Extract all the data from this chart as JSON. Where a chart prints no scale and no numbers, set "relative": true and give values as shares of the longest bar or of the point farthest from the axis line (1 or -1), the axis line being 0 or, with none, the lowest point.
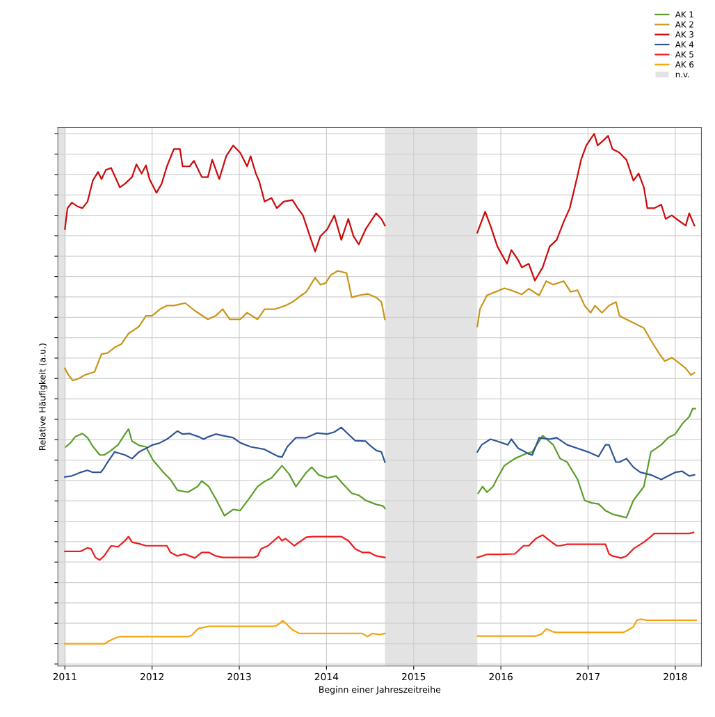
{
  "chart_data": {
    "type": "line",
    "relative": true,
    "xlabel": "Beginn einer Jahreszeitreihe",
    "ylabel": "Relative Häufigkeit (a.u.)",
    "xlim": [
      2010.92,
      2018.3
    ],
    "xticks": [
      2011,
      2012,
      2013,
      2014,
      2015,
      2016,
      2017,
      2018
    ],
    "grid": true,
    "legend": "top right",
    "tick_labels": "x",
    "line_style": "solid",
    "marker": "none",
    "bands": [
      {
        "axis": "x",
        "from": 2010.93,
        "to": 2011.01,
        "color": "#e3e3e3"
      },
      {
        "axis": "x",
        "from": 2014.67,
        "to": 2015.73,
        "label": "n.v.",
        "color": "#e3e3e3"
      }
    ],
    "series": [
      {
        "name": "AK 1",
        "color": "#5b9e2a",
        "x": [
          2011.01,
          2011.06,
          2011.12,
          2011.2,
          2011.26,
          2011.32,
          2011.4,
          2011.45,
          2011.53,
          2011.61,
          2011.69,
          2011.73,
          2011.77,
          2011.85,
          2011.93,
          2012.01,
          2012.13,
          2012.21,
          2012.29,
          2012.41,
          2012.52,
          2012.57,
          2012.65,
          2012.73,
          2012.83,
          2012.93,
          2013.01,
          2013.11,
          2013.21,
          2013.29,
          2013.37,
          2013.49,
          2013.57,
          2013.65,
          2013.77,
          2013.83,
          2013.91,
          2014.01,
          2014.11,
          2014.18,
          2014.29,
          2014.37,
          2014.45,
          2014.57,
          2014.65,
          2014.67,
          2015.2,
          2015.74,
          2015.79,
          2015.84,
          2015.91,
          2015.96,
          2016.04,
          2016.16,
          2016.28,
          2016.36,
          2016.48,
          2016.6,
          2016.68,
          2016.76,
          2016.88,
          2016.96,
          2017.04,
          2017.12,
          2017.2,
          2017.28,
          2017.44,
          2017.52,
          2017.64,
          2017.72,
          2017.84,
          2017.92,
          2018.0,
          2018.08,
          2018.16,
          2018.2,
          2018.23
        ],
        "values": [
          0.386,
          0.393,
          0.406,
          0.412,
          0.404,
          0.387,
          0.37,
          0.37,
          0.379,
          0.39,
          0.411,
          0.421,
          0.397,
          0.389,
          0.386,
          0.36,
          0.336,
          0.322,
          0.301,
          0.297,
          0.308,
          0.319,
          0.308,
          0.284,
          0.251,
          0.263,
          0.261,
          0.284,
          0.308,
          0.318,
          0.325,
          0.349,
          0.333,
          0.308,
          0.336,
          0.346,
          0.331,
          0.325,
          0.329,
          0.315,
          0.295,
          0.291,
          0.281,
          0.273,
          0.27,
          0.265,
          null,
          0.295,
          0.308,
          0.297,
          0.308,
          0.325,
          0.349,
          0.363,
          0.372,
          0.376,
          0.408,
          0.39,
          0.363,
          0.356,
          0.322,
          0.281,
          0.276,
          0.274,
          0.261,
          0.254,
          0.247,
          0.281,
          0.308,
          0.376,
          0.39,
          0.404,
          0.411,
          0.431,
          0.445,
          0.461,
          0.461
        ]
      },
      {
        "name": "AK 2",
        "color": "#c9961a",
        "x": [
          2011.0,
          2011.04,
          2011.09,
          2011.16,
          2011.23,
          2011.34,
          2011.42,
          2011.49,
          2011.57,
          2011.65,
          2011.73,
          2011.85,
          2011.93,
          2012.0,
          2012.09,
          2012.17,
          2012.25,
          2012.38,
          2012.49,
          2012.64,
          2012.73,
          2012.81,
          2012.89,
          2013.01,
          2013.09,
          2013.21,
          2013.29,
          2013.41,
          2013.53,
          2013.61,
          2013.71,
          2013.77,
          2013.87,
          2013.93,
          2013.99,
          2014.05,
          2014.13,
          2014.23,
          2014.29,
          2014.37,
          2014.47,
          2014.57,
          2014.63,
          2014.67,
          2015.2,
          2015.73,
          2015.76,
          2015.84,
          2015.94,
          2016.04,
          2016.12,
          2016.24,
          2016.32,
          2016.44,
          2016.52,
          2016.6,
          2016.72,
          2016.8,
          2016.88,
          2016.96,
          2017.03,
          2017.08,
          2017.16,
          2017.24,
          2017.32,
          2017.36,
          2017.44,
          2017.52,
          2017.64,
          2017.72,
          2017.82,
          2017.88,
          2017.96,
          2018.04,
          2018.12,
          2018.18,
          2018.22
        ],
        "values": [
          0.54,
          0.527,
          0.516,
          0.52,
          0.527,
          0.533,
          0.568,
          0.57,
          0.581,
          0.588,
          0.608,
          0.622,
          0.643,
          0.643,
          0.656,
          0.663,
          0.663,
          0.668,
          0.653,
          0.636,
          0.643,
          0.656,
          0.636,
          0.636,
          0.649,
          0.636,
          0.656,
          0.656,
          0.663,
          0.67,
          0.683,
          0.69,
          0.718,
          0.704,
          0.707,
          0.723,
          0.731,
          0.727,
          0.679,
          0.683,
          0.686,
          0.679,
          0.67,
          0.636,
          null,
          0.622,
          0.656,
          0.683,
          0.69,
          0.697,
          0.693,
          0.685,
          0.696,
          0.683,
          0.711,
          0.704,
          0.711,
          0.69,
          0.693,
          0.663,
          0.649,
          0.663,
          0.649,
          0.663,
          0.67,
          0.643,
          0.636,
          0.629,
          0.619,
          0.595,
          0.568,
          0.554,
          0.561,
          0.551,
          0.54,
          0.527,
          0.531
        ]
      },
      {
        "name": "AK 3",
        "color": "#cc0a0a",
        "x": [
          2011.0,
          2011.03,
          2011.08,
          2011.14,
          2011.2,
          2011.26,
          2011.32,
          2011.38,
          2011.42,
          2011.47,
          2011.53,
          2011.63,
          2011.69,
          2011.77,
          2011.82,
          2011.88,
          2011.93,
          2011.97,
          2012.05,
          2012.11,
          2012.17,
          2012.25,
          2012.32,
          2012.35,
          2012.43,
          2012.48,
          2012.57,
          2012.64,
          2012.69,
          2012.77,
          2012.85,
          2012.93,
          2013.01,
          2013.09,
          2013.13,
          2013.19,
          2013.23,
          2013.29,
          2013.37,
          2013.43,
          2013.51,
          2013.61,
          2013.67,
          2013.73,
          2013.81,
          2013.87,
          2013.93,
          2014.01,
          2014.09,
          2014.17,
          2014.25,
          2014.31,
          2014.37,
          2014.45,
          2014.57,
          2014.63,
          2014.67,
          2015.2,
          2015.73,
          2015.82,
          2015.88,
          2015.96,
          2016.07,
          2016.12,
          2016.2,
          2016.24,
          2016.32,
          2016.39,
          2016.48,
          2016.56,
          2016.64,
          2016.72,
          2016.79,
          2016.87,
          2016.92,
          2016.98,
          2017.07,
          2017.11,
          2017.17,
          2017.23,
          2017.28,
          2017.36,
          2017.44,
          2017.52,
          2017.58,
          2017.64,
          2017.68,
          2017.76,
          2017.84,
          2017.89,
          2017.96,
          2018.02,
          2018.12,
          2018.16,
          2018.22
        ],
        "values": [
          0.813,
          0.854,
          0.865,
          0.858,
          0.854,
          0.867,
          0.908,
          0.925,
          0.911,
          0.929,
          0.933,
          0.895,
          0.902,
          0.915,
          0.94,
          0.922,
          0.938,
          0.911,
          0.884,
          0.902,
          0.936,
          0.97,
          0.97,
          0.936,
          0.936,
          0.947,
          0.915,
          0.915,
          0.949,
          0.911,
          0.956,
          0.977,
          0.963,
          0.936,
          0.956,
          0.922,
          0.906,
          0.867,
          0.874,
          0.854,
          0.867,
          0.87,
          0.854,
          0.84,
          0.799,
          0.769,
          0.799,
          0.813,
          0.84,
          0.792,
          0.833,
          0.799,
          0.783,
          0.813,
          0.844,
          0.833,
          0.82,
          null,
          0.806,
          0.847,
          0.82,
          0.779,
          0.745,
          0.772,
          0.752,
          0.738,
          0.745,
          0.712,
          0.738,
          0.779,
          0.792,
          0.827,
          0.854,
          0.911,
          0.949,
          0.977,
          1.0,
          0.977,
          0.986,
          0.996,
          0.97,
          0.963,
          0.949,
          0.908,
          0.922,
          0.895,
          0.854,
          0.854,
          0.861,
          0.833,
          0.84,
          0.832,
          0.82,
          0.844,
          0.82
        ]
      },
      {
        "name": "AK 4",
        "color": "#2f5597",
        "x": [
          2011.0,
          2011.08,
          2011.18,
          2011.26,
          2011.32,
          2011.41,
          2011.44,
          2011.49,
          2011.57,
          2011.65,
          2011.69,
          2011.77,
          2011.85,
          2011.93,
          2012.01,
          2012.08,
          2012.17,
          2012.29,
          2012.35,
          2012.43,
          2012.53,
          2012.59,
          2012.65,
          2012.73,
          2012.81,
          2012.93,
          2013.01,
          2013.13,
          2013.29,
          2013.39,
          2013.45,
          2013.49,
          2013.55,
          2013.65,
          2013.77,
          2013.89,
          2014.01,
          2014.09,
          2014.17,
          2014.25,
          2014.33,
          2014.45,
          2014.49,
          2014.57,
          2014.63,
          2014.67,
          2015.2,
          2015.73,
          2015.78,
          2015.88,
          2015.96,
          2016.08,
          2016.12,
          2016.2,
          2016.28,
          2016.32,
          2016.36,
          2016.44,
          2016.56,
          2016.64,
          2016.76,
          2016.88,
          2017.0,
          2017.12,
          2017.2,
          2017.24,
          2017.32,
          2017.36,
          2017.44,
          2017.52,
          2017.6,
          2017.72,
          2017.84,
          2017.92,
          2018.0,
          2018.08,
          2018.16,
          2018.22
        ],
        "values": [
          0.327,
          0.329,
          0.336,
          0.34,
          0.336,
          0.336,
          0.342,
          0.356,
          0.376,
          0.372,
          0.37,
          0.363,
          0.376,
          0.383,
          0.39,
          0.393,
          0.401,
          0.417,
          0.411,
          0.412,
          0.406,
          0.401,
          0.406,
          0.411,
          0.408,
          0.404,
          0.394,
          0.386,
          0.381,
          0.372,
          0.367,
          0.366,
          0.386,
          0.404,
          0.404,
          0.413,
          0.411,
          0.415,
          0.424,
          0.411,
          0.398,
          0.397,
          0.39,
          0.379,
          0.376,
          0.356,
          null,
          0.376,
          0.39,
          0.401,
          0.397,
          0.39,
          0.401,
          0.383,
          0.376,
          0.372,
          0.37,
          0.404,
          0.401,
          0.404,
          0.39,
          0.383,
          0.376,
          0.367,
          0.39,
          0.39,
          0.356,
          0.356,
          0.363,
          0.346,
          0.336,
          0.331,
          0.322,
          0.329,
          0.336,
          0.338,
          0.329,
          0.331
        ]
      },
      {
        "name": "AK 5",
        "color": "#ee1c1c",
        "x": [
          2011.0,
          2011.18,
          2011.26,
          2011.3,
          2011.35,
          2011.4,
          2011.45,
          2011.53,
          2011.61,
          2011.69,
          2011.73,
          2011.77,
          2011.85,
          2011.93,
          2012.17,
          2012.21,
          2012.29,
          2012.37,
          2012.49,
          2012.57,
          2012.65,
          2012.73,
          2012.81,
          2012.89,
          2013.17,
          2013.21,
          2013.25,
          2013.33,
          2013.45,
          2013.49,
          2013.53,
          2013.63,
          2013.77,
          2013.85,
          2014.17,
          2014.25,
          2014.33,
          2014.41,
          2014.49,
          2014.57,
          2014.67,
          2015.2,
          2015.73,
          2015.84,
          2016.0,
          2016.16,
          2016.26,
          2016.32,
          2016.4,
          2016.48,
          2016.56,
          2016.64,
          2016.68,
          2016.76,
          2017.12,
          2017.2,
          2017.24,
          2017.28,
          2017.38,
          2017.44,
          2017.52,
          2017.64,
          2017.72,
          2017.76,
          2018.04,
          2018.16,
          2018.21
        ],
        "values": [
          0.181,
          0.181,
          0.188,
          0.186,
          0.169,
          0.164,
          0.172,
          0.192,
          0.19,
          0.202,
          0.21,
          0.199,
          0.196,
          0.192,
          0.192,
          0.179,
          0.172,
          0.176,
          0.168,
          0.179,
          0.179,
          0.172,
          0.169,
          0.169,
          0.169,
          0.172,
          0.186,
          0.192,
          0.21,
          0.202,
          0.206,
          0.192,
          0.209,
          0.21,
          0.21,
          0.202,
          0.186,
          0.179,
          0.179,
          0.172,
          0.169,
          null,
          0.169,
          0.175,
          0.175,
          0.176,
          0.192,
          0.192,
          0.206,
          0.213,
          0.202,
          0.192,
          0.192,
          0.195,
          0.195,
          0.195,
          0.176,
          0.172,
          0.168,
          0.172,
          0.186,
          0.199,
          0.21,
          0.216,
          0.216,
          0.216,
          0.218
        ]
      },
      {
        "name": "AK 6",
        "color": "#f5a40f",
        "x": [
          2011.0,
          2011.455,
          2011.495,
          2011.575,
          2011.63,
          2011.694,
          2012.413,
          2012.453,
          2012.532,
          2012.652,
          2013.41,
          2013.45,
          2013.498,
          2013.546,
          2013.61,
          2013.69,
          2013.929,
          2014.408,
          2014.472,
          2014.528,
          2014.607,
          2014.671,
          2015.2,
          2015.733,
          2016.403,
          2016.467,
          2016.523,
          2016.603,
          2016.642,
          2017.401,
          2017.441,
          2017.52,
          2017.56,
          2017.6,
          2017.68,
          2018.239
        ],
        "values": [
          0.0,
          0.0,
          0.004,
          0.011,
          0.014,
          0.014,
          0.014,
          0.016,
          0.03,
          0.034,
          0.034,
          0.038,
          0.045,
          0.038,
          0.027,
          0.02,
          0.02,
          0.02,
          0.014,
          0.02,
          0.018,
          0.02,
          null,
          0.015,
          0.015,
          0.019,
          0.029,
          0.023,
          0.022,
          0.022,
          0.025,
          0.033,
          0.046,
          0.048,
          0.046,
          0.046
        ]
      }
    ]
  }
}
